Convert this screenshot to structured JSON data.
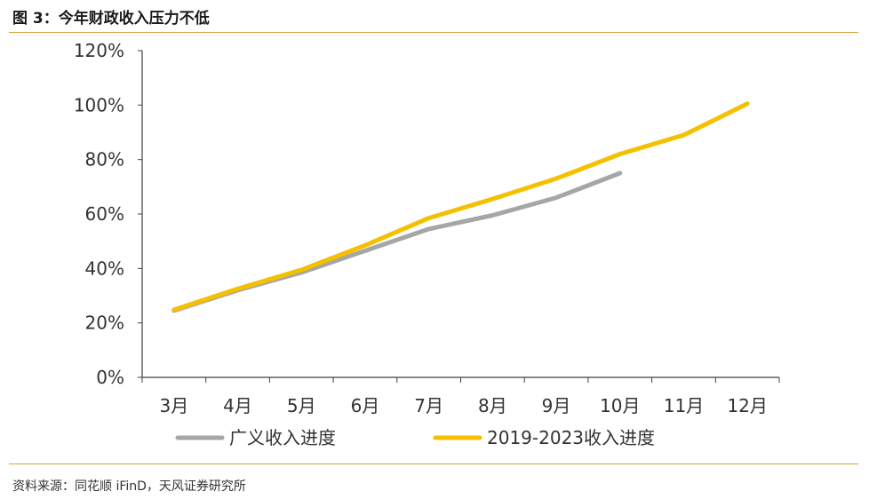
{
  "title": "图 3：今年财政收入压力不低",
  "source": "资料来源：同花顺 iFinD，天风证券研究所",
  "colors": {
    "series_1": "#a6a6a6",
    "series_2": "#f5c000",
    "rule": "#d9a441",
    "axis": "#404040",
    "text": "#333333"
  },
  "chart_data": {
    "type": "line",
    "title": "今年财政收入压力不低",
    "xlabel": "",
    "ylabel": "",
    "categories": [
      "3月",
      "4月",
      "5月",
      "6月",
      "7月",
      "8月",
      "9月",
      "10月",
      "11月",
      "12月"
    ],
    "ylim": [
      0,
      120
    ],
    "yticks": [
      0,
      20,
      40,
      60,
      80,
      100,
      120
    ],
    "ytick_labels": [
      "0%",
      "20%",
      "40%",
      "60%",
      "80%",
      "100%",
      "120%"
    ],
    "grid": false,
    "legend_position": "bottom",
    "series": [
      {
        "name": "广义收入进度",
        "values": [
          24.5,
          32,
          38.5,
          46.5,
          54.5,
          59.5,
          66,
          75,
          null,
          null
        ]
      },
      {
        "name": "2019-2023收入进度",
        "values": [
          24.8,
          32.5,
          39.5,
          48.5,
          58.5,
          65.5,
          73,
          82,
          89,
          100.5
        ]
      }
    ]
  }
}
